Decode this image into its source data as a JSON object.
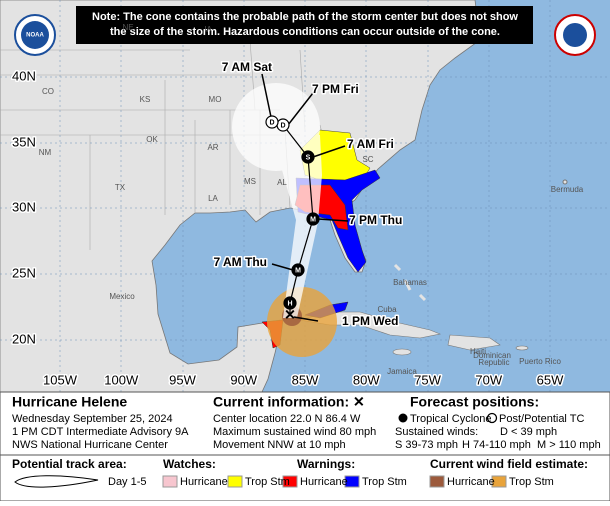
{
  "header": {
    "note": [
      "Note: The cone contains the probable path of the storm center but does not show",
      "the size of the storm. Hazardous conditions can occur outside of the cone."
    ]
  },
  "map": {
    "lat_labels": [
      "40N",
      "35N",
      "30N",
      "25N",
      "20N"
    ],
    "lon_labels": [
      "105W",
      "100W",
      "95W",
      "90W",
      "85W",
      "80W",
      "75W",
      "70W",
      "65W"
    ],
    "places": [
      "NE",
      "IA",
      "CO",
      "KS",
      "MO",
      "OK",
      "AR",
      "NM",
      "MS",
      "AL",
      "SC",
      "TX",
      "LA",
      "Mexico",
      "Cuba",
      "Bahamas",
      "Bermuda",
      "Jamaica",
      "Haiti",
      "Dominican",
      "Republic",
      "Puerto Rico"
    ]
  },
  "track": {
    "points": [
      {
        "label": "1 PM Wed",
        "marker": "H"
      },
      {
        "label": "7 AM Thu",
        "marker": "M"
      },
      {
        "label": "7 PM Thu",
        "marker": "M"
      },
      {
        "label": "7 AM Fri",
        "marker": "S"
      },
      {
        "label": "7 PM Fri",
        "marker": "D"
      },
      {
        "label": "7 AM Sat",
        "marker": "D"
      }
    ]
  },
  "info": {
    "storm": "Hurricane Helene",
    "date": "Wednesday September 25, 2024",
    "advisory": "1 PM CDT Intermediate Advisory 9A",
    "center": "NWS National Hurricane Center",
    "current_title": "Current information: ✕",
    "current_lines": [
      "Center location 22.0 N 86.4 W",
      "Maximum sustained wind 80 mph",
      "Movement NNW at 10 mph"
    ],
    "forecast_title": "Forecast positions:",
    "tropical_cyclone": "Tropical Cyclone",
    "post_tc": "Post/Potential TC",
    "sustained": "Sustained winds:",
    "winds": [
      "D < 39 mph",
      "S 39-73 mph",
      "H 74-110 mph",
      "M > 110 mph"
    ]
  },
  "legend": {
    "track_title": "Potential track area:",
    "track_day": "Day 1-5",
    "watches": "Watches:",
    "watch_items": [
      "Hurricane",
      "Trop Stm"
    ],
    "warnings": "Warnings:",
    "warning_items": [
      "Hurricane",
      "Trop Stm"
    ],
    "wind_title": "Current wind field estimate:",
    "wind_items": [
      "Hurricane",
      "Trop Stm"
    ]
  }
}
